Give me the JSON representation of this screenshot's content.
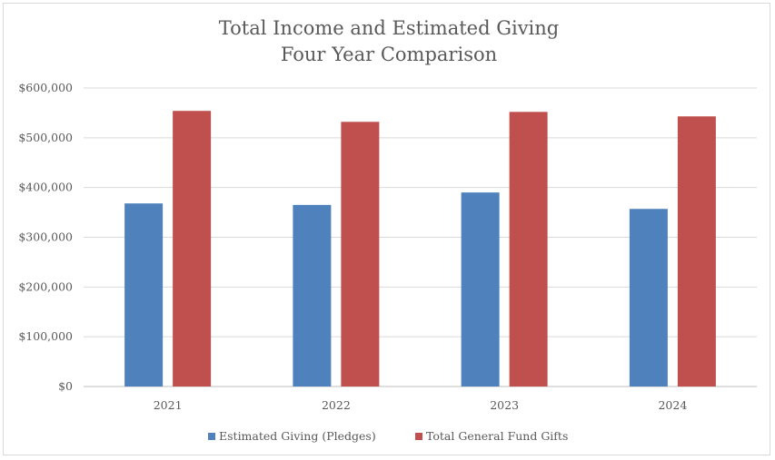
{
  "chart_data": {
    "type": "bar",
    "title_lines": [
      "Total Income and Estimated Giving",
      "Four Year Comparison"
    ],
    "categories": [
      "2021",
      "2022",
      "2023",
      "2024"
    ],
    "series": [
      {
        "name": "Estimated Giving (Pledges)",
        "color": "#4f81bd",
        "values": [
          368000,
          365000,
          390000,
          357000
        ]
      },
      {
        "name": "Total General Fund Gifts",
        "color": "#c0504d",
        "values": [
          554000,
          532000,
          552000,
          543000
        ]
      }
    ],
    "ylim": [
      0,
      600000
    ],
    "yticks": [
      0,
      100000,
      200000,
      300000,
      400000,
      500000,
      600000
    ],
    "ytick_labels": [
      "$0",
      "$100,000",
      "$200,000",
      "$300,000",
      "$400,000",
      "$500,000",
      "$600,000"
    ],
    "grid": true,
    "legend_position": "bottom"
  }
}
